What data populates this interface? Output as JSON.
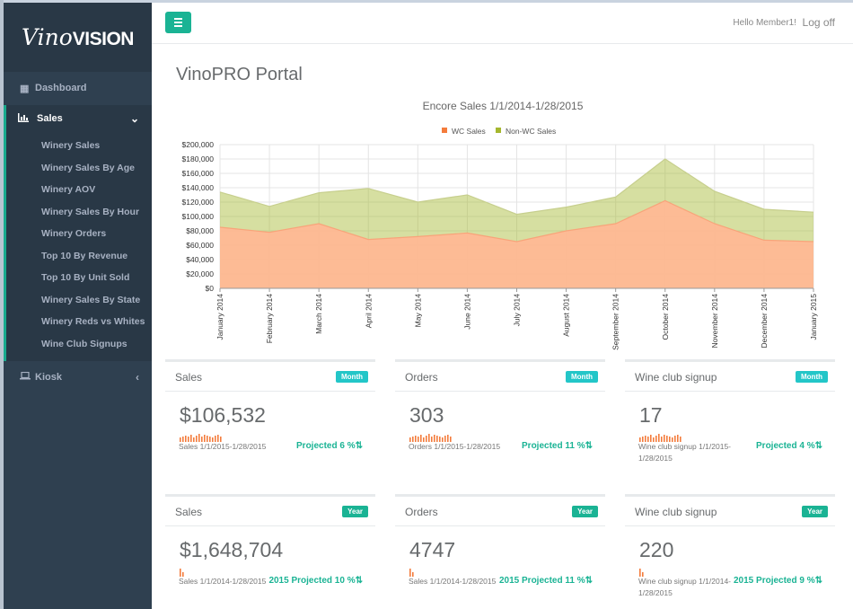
{
  "brand": {
    "vino": "Vino",
    "vision": "VISION"
  },
  "sidebar": {
    "dashboard": {
      "label": "Dashboard",
      "icon": "dashboard-icon"
    },
    "sales": {
      "label": "Sales",
      "icon": "bar-chart-icon"
    },
    "sales_items": [
      "Winery Sales",
      "Winery Sales By Age",
      "Winery AOV",
      "Winery Sales By Hour",
      "Winery Orders",
      "Top 10 By Revenue",
      "Top 10 By Unit Sold",
      "Winery Sales By State",
      "Winery Reds vs Whites",
      "Wine Club Signups"
    ],
    "kiosk": {
      "label": "Kiosk",
      "icon": "laptop-icon"
    }
  },
  "topbar": {
    "greeting": "Hello Member1!",
    "logoff": "Log off"
  },
  "page": {
    "title": "VinoPRO Portal"
  },
  "chart_data": {
    "type": "area",
    "title": "Encore Sales 1/1/2014-1/28/2015",
    "categories": [
      "January 2014",
      "February 2014",
      "March 2014",
      "April 2014",
      "May 2014",
      "June 2014",
      "July 2014",
      "August 2014",
      "September 2014",
      "October 2014",
      "November 2014",
      "December 2014",
      "January 2015"
    ],
    "series": [
      {
        "name": "WC Sales",
        "color": "#f47c3c",
        "values": [
          85000,
          78000,
          90000,
          68000,
          72000,
          77000,
          65000,
          80000,
          90000,
          122000,
          90000,
          67000,
          65000
        ]
      },
      {
        "name": "Non-WC Sales",
        "color": "#a5b72e",
        "values": [
          49000,
          36000,
          43000,
          71000,
          48000,
          53000,
          38000,
          33000,
          37000,
          58000,
          45000,
          43000,
          41000
        ]
      }
    ],
    "stacked": true,
    "ylim": [
      0,
      200000
    ],
    "yticks": [
      "$0",
      "$20,000",
      "$40,000",
      "$60,000",
      "$80,000",
      "$100,000",
      "$120,000",
      "$140,000",
      "$160,000",
      "$180,000",
      "$200,000"
    ],
    "legend": "top-center",
    "grid": true
  },
  "cards": [
    {
      "title": "Sales",
      "badge": "Month",
      "value": "$106,532",
      "sub": "Sales 1/1/2015-1/28/2015",
      "proj": "Projected 6 %"
    },
    {
      "title": "Orders",
      "badge": "Month",
      "value": "303",
      "sub": "Orders 1/1/2015-1/28/2015",
      "proj": "Projected 11 %"
    },
    {
      "title": "Wine club signup",
      "badge": "Month",
      "value": "17",
      "sub": "Wine club signup 1/1/2015-\n1/28/2015",
      "proj": "Projected 4 %"
    },
    {
      "title": "Sales",
      "badge": "Year",
      "value": "$1,648,704",
      "sub": "Sales 1/1/2014-1/28/2015",
      "proj": "2015 Projected 10 %"
    },
    {
      "title": "Orders",
      "badge": "Year",
      "value": "4747",
      "sub": "Sales 1/1/2014-1/28/2015",
      "proj": "2015 Projected 11 %"
    },
    {
      "title": "Wine club signup",
      "badge": "Year",
      "value": "220",
      "sub": "Wine club signup 1/1/2014-\n1/28/2015",
      "proj": "2015 Projected 9 %"
    }
  ],
  "colors": {
    "accent": "#1ab394",
    "info": "#23c6c8",
    "sidebar": "#2f4050",
    "spark": "#f47c3c"
  }
}
